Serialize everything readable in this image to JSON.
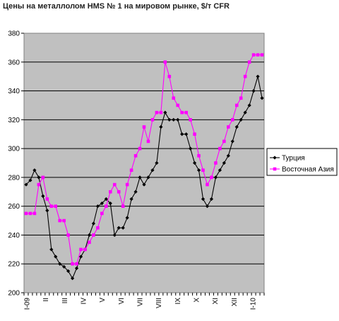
{
  "chart_data": {
    "type": "line",
    "title": "Цены на металлолом HMS № 1 на мировом рынке, $/т CFR",
    "ylim": [
      200,
      380
    ],
    "yticks": [
      200,
      220,
      240,
      260,
      280,
      300,
      320,
      340,
      360,
      380
    ],
    "grid": "horizontal",
    "legend_position": "right",
    "xtick_labels": [
      "I-09",
      "II",
      "III",
      "IV",
      "V",
      "VI",
      "VII",
      "VIII",
      "IX",
      "X",
      "XI",
      "XII",
      "I-10"
    ],
    "series": [
      {
        "name": "Турция",
        "color": "#000000",
        "marker": "diamond",
        "values": [
          275,
          278,
          285,
          280,
          267,
          257,
          230,
          225,
          220,
          218,
          215,
          210,
          217,
          225,
          230,
          240,
          248,
          260,
          262,
          265,
          262,
          240,
          245,
          245,
          252,
          265,
          270,
          280,
          275,
          280,
          285,
          290,
          315,
          325,
          320,
          320,
          320,
          310,
          310,
          300,
          290,
          285,
          265,
          260,
          265,
          280,
          285,
          290,
          295,
          305,
          315,
          320,
          325,
          330,
          340,
          350,
          335
        ]
      },
      {
        "name": "Восточная Азия",
        "color": "#ff00ff",
        "marker": "square",
        "values": [
          255,
          255,
          255,
          275,
          280,
          265,
          260,
          260,
          250,
          250,
          240,
          220,
          220,
          230,
          230,
          235,
          240,
          245,
          255,
          260,
          270,
          275,
          270,
          260,
          275,
          285,
          295,
          300,
          315,
          305,
          320,
          325,
          325,
          360,
          350,
          335,
          330,
          325,
          325,
          320,
          310,
          295,
          285,
          275,
          280,
          290,
          300,
          305,
          315,
          320,
          330,
          335,
          350,
          360,
          365,
          365,
          365
        ]
      }
    ]
  }
}
